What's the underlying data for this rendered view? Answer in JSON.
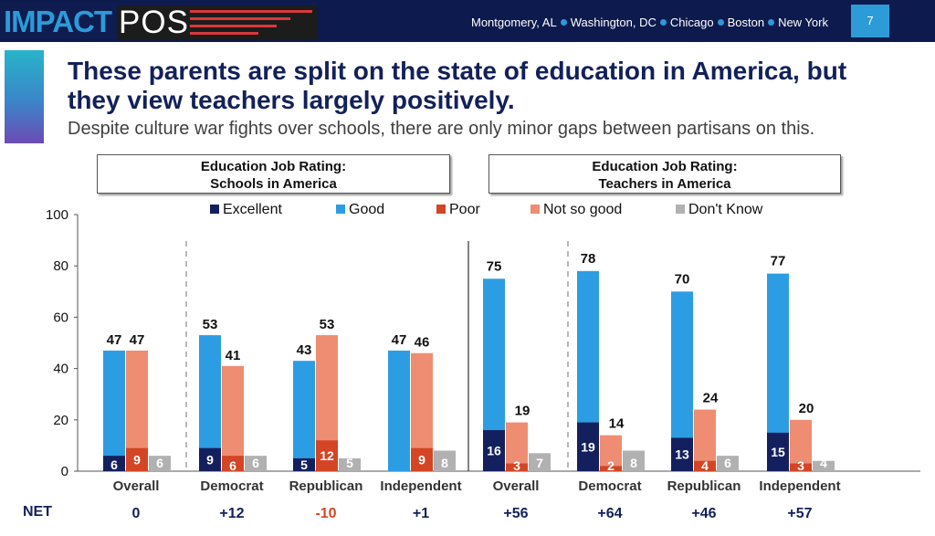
{
  "brand": {
    "impact": "IMPACT",
    "pos": "POS"
  },
  "header": {
    "cities": [
      "Montgomery, AL",
      "Washington, DC",
      "Chicago",
      "Boston",
      "New York"
    ],
    "page_number": "7"
  },
  "headline": {
    "title": "These parents are split on the state of education in America, but they view teachers largely positively.",
    "subtitle": "Despite culture war fights over schools, there are only minor gaps between partisans on this."
  },
  "panels": [
    {
      "line1": "Education Job Rating:",
      "line2": "Schools in America"
    },
    {
      "line1": "Education Job Rating:",
      "line2": "Teachers in America"
    }
  ],
  "colors": {
    "excellent": "#14205e",
    "good": "#2d9de3",
    "poor": "#d44525",
    "not_so_good": "#ee8d72",
    "dont_know": "#b1b1b1",
    "net_positive": "#13215a",
    "net_negative": "#d44525"
  },
  "chart_data": {
    "type": "bar",
    "ylim": [
      0,
      100
    ],
    "yticks": [
      0,
      20,
      40,
      60,
      80,
      100
    ],
    "legend": [
      "Excellent",
      "Good",
      "Poor",
      "Not so good",
      "Don't Know"
    ],
    "net_label": "NET",
    "groups": [
      {
        "panel": "Schools in America",
        "category": "Overall",
        "good_total": 47,
        "excellent": 6,
        "not_good_total": 47,
        "poor": 9,
        "dont_know": 6,
        "net": "0"
      },
      {
        "panel": "Schools in America",
        "category": "Democrat",
        "good_total": 53,
        "excellent": 9,
        "not_good_total": 41,
        "poor": 6,
        "dont_know": 6,
        "net": "+12"
      },
      {
        "panel": "Schools in America",
        "category": "Republican",
        "good_total": 43,
        "excellent": 5,
        "not_good_total": 53,
        "poor": 12,
        "dont_know": 5,
        "net": "-10"
      },
      {
        "panel": "Schools in America",
        "category": "Independent",
        "good_total": 47,
        "excellent": null,
        "not_good_total": 46,
        "poor": 9,
        "dont_know": 8,
        "net": "+1"
      },
      {
        "panel": "Teachers in America",
        "category": "Overall",
        "good_total": 75,
        "excellent": 16,
        "not_good_total": 19,
        "poor": 3,
        "dont_know": 7,
        "net": "+56"
      },
      {
        "panel": "Teachers in America",
        "category": "Democrat",
        "good_total": 78,
        "excellent": 19,
        "not_good_total": 14,
        "poor": 2,
        "dont_know": 8,
        "net": "+64"
      },
      {
        "panel": "Teachers in America",
        "category": "Republican",
        "good_total": 70,
        "excellent": 13,
        "not_good_total": 24,
        "poor": 4,
        "dont_know": 6,
        "net": "+46"
      },
      {
        "panel": "Teachers in America",
        "category": "Independent",
        "good_total": 77,
        "excellent": 15,
        "not_good_total": 20,
        "poor": 3,
        "dont_know": 4,
        "net": "+57"
      }
    ]
  }
}
